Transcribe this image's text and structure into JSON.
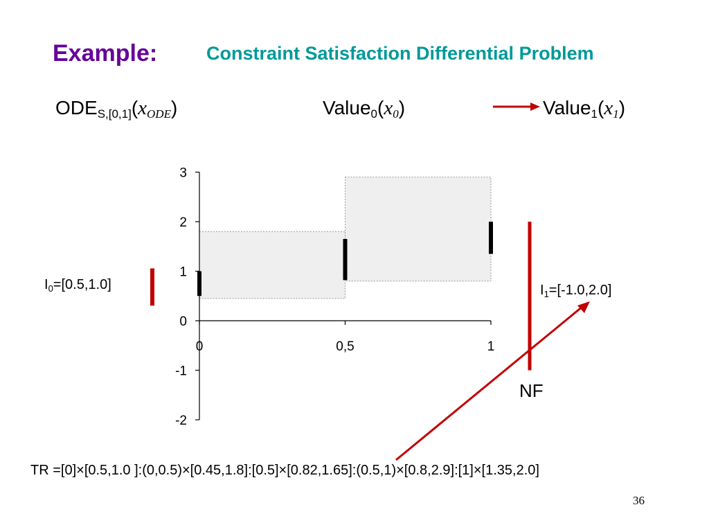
{
  "slide": {
    "example_label": "Example:",
    "title": "Constraint Satisfaction Differential Problem",
    "page_number": "36"
  },
  "formulas": {
    "ode": {
      "base": "ODE",
      "sub": "S,[0,1]",
      "open": "(",
      "var": "x",
      "var_sub": "ODE",
      "close": ")"
    },
    "value0": {
      "base": "Value",
      "sub": "0",
      "open": "(",
      "var": "x",
      "var_sub": "0",
      "close": ")"
    },
    "value1": {
      "base": "Value",
      "sub": "1",
      "open": "(",
      "var": "x",
      "var_sub": "1",
      "close": ")"
    }
  },
  "intervals": {
    "i0": {
      "name": "I",
      "sub": "0",
      "text": "=[0.5,1.0]"
    },
    "i1": {
      "name": "I",
      "sub": "1",
      "text": "=[-1.0,2.0]"
    }
  },
  "nf_label": "NF",
  "trajectory": "TR =[0]×[0.5,1.0 ]:(0,0.5)×[0.45,1.8]:[0.5]×[0.82,1.65]:(0.5,1)×[0.8,2.9]:[1]×[1.35,2.0]",
  "colors": {
    "example": "#660099",
    "title": "#009999",
    "accent_red": "#c00000",
    "box_fill": "#efefef",
    "box_stroke": "#9a9a9a"
  },
  "chart_data": {
    "type": "box-interval",
    "xlim": [
      0,
      1
    ],
    "ylim": [
      -2,
      3
    ],
    "x_ticks": [
      0,
      0.5,
      1
    ],
    "x_tick_labels": [
      "0",
      "0,5",
      "1"
    ],
    "y_ticks": [
      3,
      2,
      1,
      0,
      -1,
      -2
    ],
    "y_tick_labels": [
      "3",
      "2",
      "1",
      "0",
      "-1",
      "-2"
    ],
    "grid": false,
    "boxes": [
      {
        "x": [
          0,
          0.5
        ],
        "y": [
          0.45,
          1.8
        ]
      },
      {
        "x": [
          0.5,
          1
        ],
        "y": [
          0.8,
          2.9
        ]
      }
    ],
    "point_intervals": [
      {
        "x": 0,
        "y": [
          0.5,
          1.0
        ]
      },
      {
        "x": 0.5,
        "y": [
          0.82,
          1.65
        ]
      },
      {
        "x": 1,
        "y": [
          1.35,
          2.0
        ]
      }
    ],
    "input_interval": {
      "y": [
        0.5,
        1.0
      ]
    },
    "output_interval": {
      "y": [
        -1.0,
        2.0
      ]
    }
  }
}
